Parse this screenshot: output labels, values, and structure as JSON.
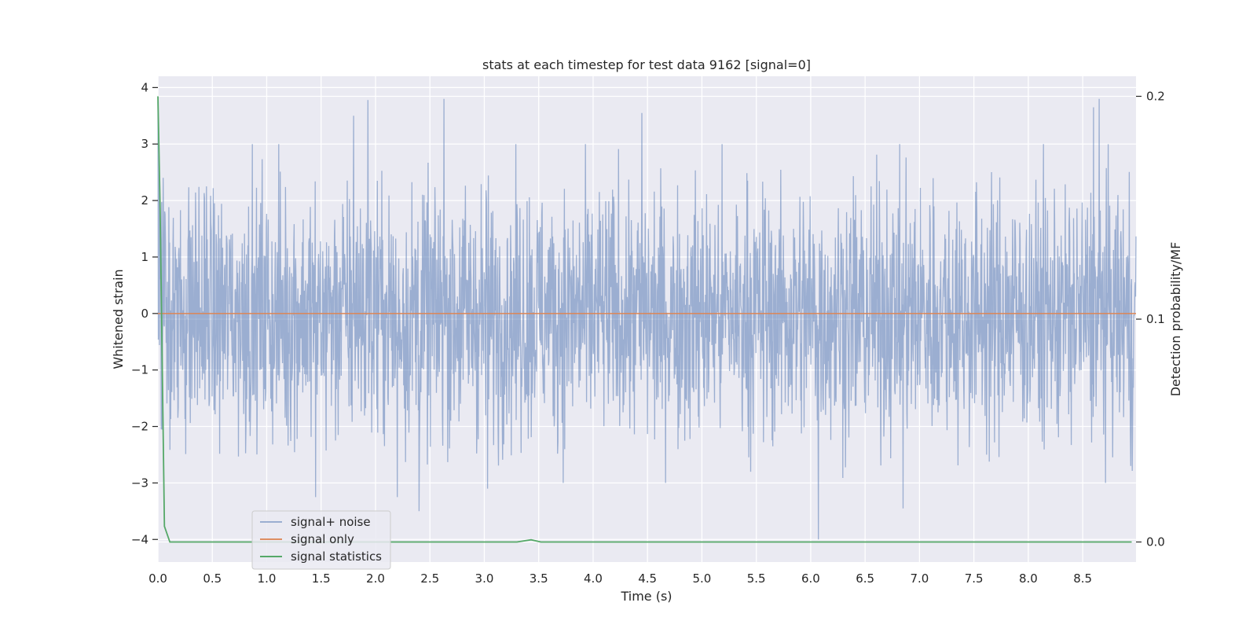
{
  "chart_data": {
    "type": "line",
    "title": "stats at each timestep for test data 9162 [signal=0]",
    "xlabel": "Time (s)",
    "ylabel": "Whitened strain",
    "y2label": "Detection probability/MF",
    "xlim": [
      0.0,
      8.99
    ],
    "ylim": [
      -4.4,
      4.2
    ],
    "y2lim": [
      -0.009,
      0.209
    ],
    "xticks": [
      0.0,
      0.5,
      1.0,
      1.5,
      2.0,
      2.5,
      3.0,
      3.5,
      4.0,
      4.5,
      5.0,
      5.5,
      6.0,
      6.5,
      7.0,
      7.5,
      8.0,
      8.5
    ],
    "xtick_labels": [
      "0.0",
      "0.5",
      "1.0",
      "1.5",
      "2.0",
      "2.5",
      "3.0",
      "3.5",
      "4.0",
      "4.5",
      "5.0",
      "5.5",
      "6.0",
      "6.5",
      "7.0",
      "7.5",
      "8.0",
      "8.5"
    ],
    "yticks": [
      4,
      3,
      2,
      1,
      0,
      -1,
      -2,
      -3,
      -4
    ],
    "ytick_labels": [
      "4",
      "3",
      "2",
      "1",
      "0",
      "−1",
      "−2",
      "−3",
      "−4"
    ],
    "y2ticks": [
      0.2,
      0.1,
      0.0
    ],
    "y2tick_labels": [
      "0.2",
      "0.1",
      "0.0"
    ],
    "grid": true,
    "legend_position": "lower-left",
    "series": [
      {
        "name": "signal+ noise",
        "color": "#4c72b0",
        "axis": "left",
        "kind": "noise",
        "typical_range": [
          -1.8,
          1.8
        ],
        "points": [
          [
            0.0,
            3.75
          ],
          [
            0.01,
            2.8
          ],
          [
            0.03,
            -2.05
          ],
          [
            0.05,
            2.4
          ],
          [
            1.45,
            -3.25
          ],
          [
            1.8,
            3.5
          ],
          [
            1.93,
            3.78
          ],
          [
            2.2,
            -3.25
          ],
          [
            2.4,
            -3.5
          ],
          [
            2.63,
            3.8
          ],
          [
            3.03,
            -3.1
          ],
          [
            4.45,
            3.55
          ],
          [
            6.07,
            -4.0
          ],
          [
            6.85,
            -3.45
          ],
          [
            8.6,
            3.65
          ],
          [
            8.65,
            3.8
          ],
          [
            8.94,
            -2.7
          ]
        ]
      },
      {
        "name": "signal only",
        "color": "#dd8452",
        "axis": "left",
        "points": [
          [
            0.0,
            0.0
          ],
          [
            8.99,
            0.0
          ]
        ]
      },
      {
        "name": "signal statistics",
        "color": "#55a868",
        "axis": "right",
        "points": [
          [
            0.0,
            0.2
          ],
          [
            0.02,
            0.15
          ],
          [
            0.04,
            0.08
          ],
          [
            0.06,
            0.007
          ],
          [
            0.11,
            0.0
          ],
          [
            3.3,
            0.0
          ],
          [
            3.43,
            0.001
          ],
          [
            3.52,
            0.0
          ],
          [
            8.95,
            0.0
          ]
        ]
      }
    ]
  }
}
